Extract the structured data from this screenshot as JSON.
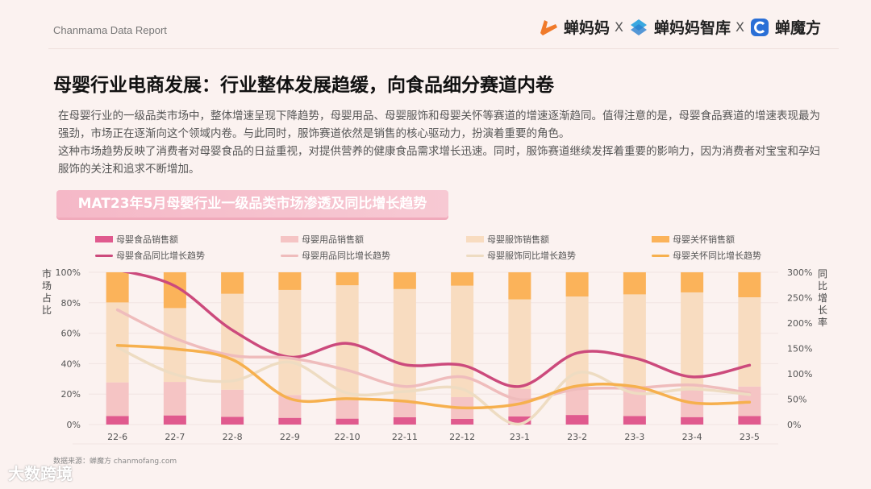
{
  "header": {
    "report_label": "Chanmama Data Report",
    "logos": [
      "蝉妈妈",
      "蝉妈妈智库",
      "蝉魔方"
    ],
    "separator": "X"
  },
  "title": "母婴行业电商发展：行业整体发展趋缓，向食品细分赛道内卷",
  "paragraphs": [
    "在母婴行业的一级品类市场中，整体增速呈现下降趋势，母婴用品、母婴服饰和母婴关怀等赛道的增速逐渐趋同。值得注意的是，母婴食品赛道的增速表现最为强劲，市场正在逐渐向这个领域内卷。与此同时，服饰赛道依然是销售的核心驱动力，扮演着重要的角色。",
    "这种市场趋势反映了消费者对母婴食品的日益重视，对提供营养的健康食品需求增长迅速。同时，服饰赛道继续发挥着重要的影响力，因为消费者对宝宝和孕妇服饰的关注和追求不断增加。"
  ],
  "chart_data": {
    "type": "bar",
    "title": "MAT23年5月母婴行业一级品类市场渗透及同比增长趋势",
    "categories": [
      "22-6",
      "22-7",
      "22-8",
      "22-9",
      "22-10",
      "22-11",
      "22-12",
      "23-1",
      "23-2",
      "23-3",
      "23-4",
      "23-5"
    ],
    "ylabel": "市场占比",
    "y2label": "同比增长率",
    "ylim": [
      0,
      100
    ],
    "y2lim": [
      0,
      300
    ],
    "yticks": [
      "0%",
      "20%",
      "40%",
      "60%",
      "80%",
      "100%"
    ],
    "y2ticks": [
      "0%",
      "50%",
      "100%",
      "150%",
      "200%",
      "250%",
      "300%"
    ],
    "stacked": true,
    "legend_position": "top",
    "bar_series": [
      {
        "name": "母婴食品销售额",
        "color": "#e05a8e",
        "values": [
          5.6,
          6.0,
          5.1,
          4.4,
          3.9,
          4.8,
          3.7,
          5.3,
          6.3,
          5.6,
          4.9,
          5.6
        ]
      },
      {
        "name": "母婴用品销售额",
        "color": "#f5c4c4",
        "values": [
          22.1,
          22.0,
          17.8,
          15.0,
          12.1,
          11.2,
          14.3,
          18.0,
          18.7,
          19.4,
          18.4,
          19.4
        ]
      },
      {
        "name": "母婴服饰销售额",
        "color": "#f8dcc0",
        "values": [
          52.5,
          48.5,
          63.0,
          69.0,
          75.5,
          73.0,
          73.2,
          58.9,
          59.1,
          60.5,
          63.5,
          58.6
        ]
      },
      {
        "name": "母婴关怀销售额",
        "color": "#fbb35a",
        "values": [
          19.8,
          23.5,
          14.1,
          11.6,
          8.5,
          11.0,
          8.8,
          17.8,
          15.9,
          14.5,
          13.2,
          16.4
        ]
      }
    ],
    "line_series": [
      {
        "name": "母婴食品同比增长趋势",
        "color": "#cc4a7c",
        "values": [
          305,
          273,
          186,
          133,
          160,
          118,
          117,
          75,
          141,
          131,
          94,
          117
        ]
      },
      {
        "name": "母婴用品同比增长趋势",
        "color": "#efbcbc",
        "values": [
          226,
          170,
          136,
          131,
          107,
          75,
          94,
          49,
          70,
          72,
          78,
          62
        ]
      },
      {
        "name": "母婴服饰同比增长趋势",
        "color": "#eedcc2",
        "values": [
          152,
          99,
          86,
          123,
          62,
          65,
          70,
          1,
          102,
          62,
          70,
          59
        ]
      },
      {
        "name": "母婴关怀同比增长趋势",
        "color": "#f6b04e",
        "values": [
          156,
          149,
          128,
          51,
          51,
          46,
          33,
          41,
          76,
          75,
          43,
          44
        ]
      }
    ],
    "grid": true
  },
  "source": "数据来源：蝉魔方 chanmofang.com",
  "watermark": "大数跨境"
}
